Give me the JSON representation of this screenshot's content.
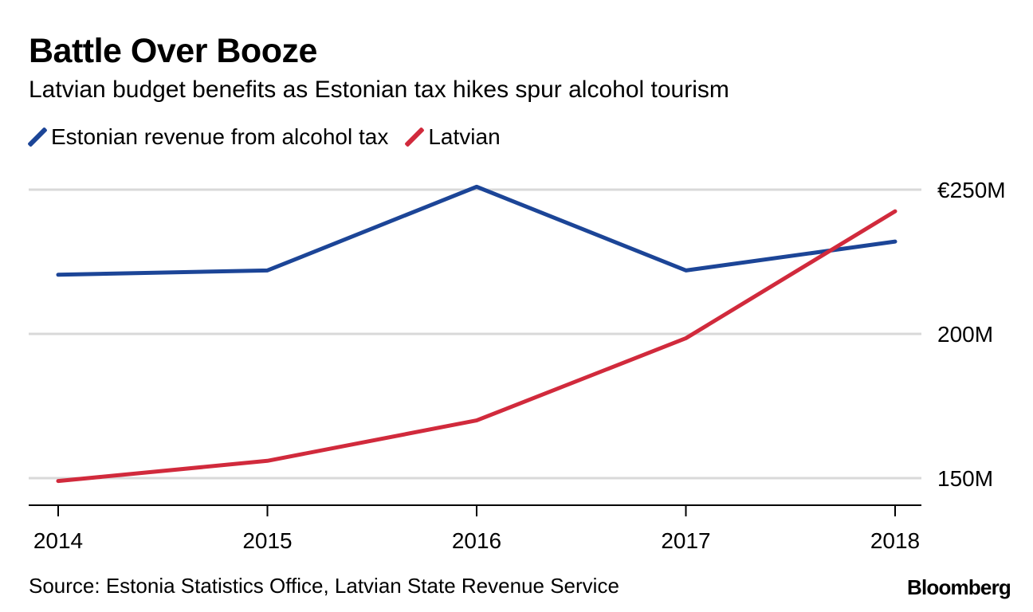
{
  "header": {
    "title": "Battle Over Booze",
    "subtitle": "Latvian budget benefits as Estonian tax hikes spur alcohol tourism"
  },
  "footer": {
    "source": "Source: Estonia Statistics Office, Latvian State Revenue Service",
    "brand": "Bloomberg"
  },
  "colors": {
    "estonian": "#1c4597",
    "latvian": "#d12a3c",
    "grid": "#d9d9d9",
    "axis": "#000000"
  },
  "chart_data": {
    "type": "line",
    "title": "Battle Over Booze",
    "subtitle": "Latvian budget benefits as Estonian tax hikes spur alcohol tourism",
    "xlabel": "",
    "ylabel": "",
    "x": [
      "2014",
      "2015",
      "2016",
      "2017",
      "2018"
    ],
    "ylim": [
      140,
      251
    ],
    "yticks": [
      150,
      200,
      250
    ],
    "ytick_labels": [
      "150M",
      "200M",
      "€250M"
    ],
    "grid": true,
    "legend_position": "top-left",
    "series": [
      {
        "name": "Estonian revenue from alcohol tax",
        "color_key": "estonian",
        "values": [
          220.5,
          222,
          251,
          222,
          232
        ]
      },
      {
        "name": "Latvian",
        "color_key": "latvian",
        "values": [
          149,
          156,
          170,
          198.5,
          242.5
        ]
      }
    ]
  }
}
